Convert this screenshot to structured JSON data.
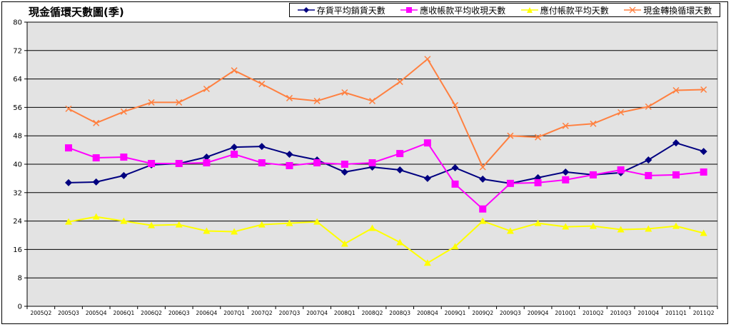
{
  "chart_data": {
    "type": "line",
    "title": "現金循環天數圖(季)",
    "ylim": [
      0,
      80
    ],
    "yticks": [
      0,
      8,
      16,
      24,
      32,
      40,
      48,
      56,
      64,
      72,
      80
    ],
    "grid": true,
    "legend_position": "top-right",
    "categories": [
      "2005Q2",
      "2005Q3",
      "2005Q4",
      "2006Q1",
      "2006Q2",
      "2006Q3",
      "2006Q4",
      "2007Q1",
      "2007Q2",
      "2007Q3",
      "2007Q4",
      "2008Q1",
      "2008Q2",
      "2008Q3",
      "2008Q4",
      "2009Q1",
      "2009Q2",
      "2009Q3",
      "2009Q4",
      "2010Q1",
      "2010Q2",
      "2010Q3",
      "2010Q4",
      "2011Q1",
      "2011Q2"
    ],
    "series": [
      {
        "name": "存貨平均銷貨天數",
        "color": "#000080",
        "marker": "diamond",
        "values": [
          null,
          34.8,
          35.0,
          36.8,
          39.8,
          40.2,
          42.0,
          44.8,
          45.0,
          42.8,
          41.2,
          37.8,
          39.2,
          38.4,
          36.0,
          39.0,
          35.8,
          34.6,
          36.2,
          37.8,
          37.0,
          37.6,
          41.2,
          46.0,
          43.6
        ]
      },
      {
        "name": "應收帳款平均收現天數",
        "color": "#ff00ff",
        "marker": "square",
        "values": [
          null,
          44.6,
          41.8,
          42.0,
          40.2,
          40.2,
          40.4,
          42.8,
          40.4,
          39.6,
          40.4,
          40.0,
          40.4,
          43.0,
          46.0,
          34.4,
          27.4,
          34.6,
          34.8,
          35.6,
          37.0,
          38.4,
          36.8,
          37.0,
          37.8
        ]
      },
      {
        "name": "應付帳款平均天數",
        "color": "#ffff00",
        "marker": "triangle",
        "values": [
          null,
          23.8,
          25.2,
          24.0,
          22.8,
          23.0,
          21.2,
          21.0,
          23.0,
          23.4,
          23.8,
          17.6,
          22.0,
          18.0,
          12.2,
          16.8,
          24.0,
          21.2,
          23.4,
          22.4,
          22.6,
          21.6,
          21.8,
          22.6,
          20.6
        ]
      },
      {
        "name": "現金轉換循環天數",
        "color": "#ff8040",
        "marker": "x",
        "values": [
          null,
          55.6,
          51.6,
          54.8,
          57.4,
          57.4,
          61.2,
          66.4,
          62.6,
          58.6,
          57.8,
          60.2,
          57.8,
          63.2,
          69.6,
          56.6,
          39.2,
          48.0,
          47.6,
          50.8,
          51.4,
          54.6,
          56.2,
          60.8,
          61.0
        ]
      }
    ]
  }
}
